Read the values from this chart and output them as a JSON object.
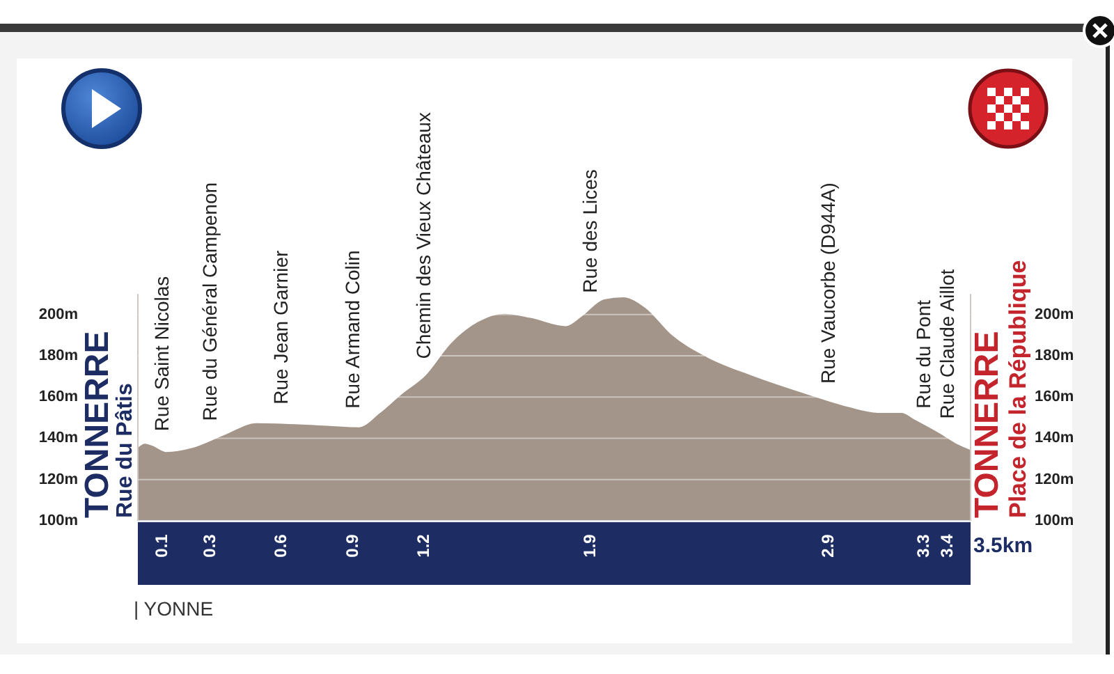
{
  "chart_data": {
    "type": "area",
    "color": "#a39589",
    "x": [
      0,
      0.03,
      0.06,
      0.12,
      0.23,
      0.36,
      0.5,
      0.75,
      0.93,
      1.02,
      1.11,
      1.21,
      1.32,
      1.43,
      1.54,
      1.65,
      1.8,
      1.87,
      1.96,
      2.04,
      2.13,
      2.24,
      2.39,
      2.58,
      2.81,
      2.98,
      3.11,
      3.21,
      3.26,
      3.37,
      3.44,
      3.5
    ],
    "values": [
      135,
      137,
      136,
      133,
      135,
      141,
      147,
      146,
      145,
      152,
      161,
      170,
      186,
      196,
      200,
      198,
      194,
      199,
      207,
      208,
      203,
      190,
      179,
      170,
      161,
      155,
      152,
      152,
      149,
      142,
      137,
      134
    ],
    "xlim": [
      0,
      3.5
    ],
    "xticks": [
      0.1,
      0.3,
      0.6,
      0.9,
      1.2,
      1.9,
      2.9,
      3.3,
      3.4
    ],
    "ylim": [
      100,
      210
    ],
    "yticks": [
      {
        "value": 100,
        "label": "100m"
      },
      {
        "value": 120,
        "label": "120m"
      },
      {
        "value": 140,
        "label": "140m"
      },
      {
        "value": 160,
        "label": "160m"
      },
      {
        "value": 180,
        "label": "180m"
      },
      {
        "value": 200,
        "label": "200m"
      }
    ],
    "y2lim": [
      100,
      210
    ],
    "y2ticks": [
      {
        "value": 100,
        "label": "100m"
      },
      {
        "value": 120,
        "label": "120m"
      },
      {
        "value": 140,
        "label": "140m"
      },
      {
        "value": 160,
        "label": "160m"
      },
      {
        "value": 180,
        "label": "180m"
      },
      {
        "value": 200,
        "label": "200m"
      }
    ],
    "grid": "y",
    "annotations": [
      "TONNERRE",
      "Rue du Pâtis",
      {
        "text": "Rue Saint Nicolas",
        "x": 0.1,
        "y": 134
      },
      {
        "text": "Rue du Général Campenon",
        "x": 0.3,
        "y": 139
      },
      {
        "text": "Rue Jean Garnier",
        "x": 0.6,
        "y": 147
      },
      {
        "text": "Rue Armand Colin",
        "x": 0.9,
        "y": 145
      },
      {
        "text": "Chemin des Vieux Châteaux",
        "x": 1.2,
        "y": 169
      },
      {
        "text": "Rue des Lices",
        "x": 1.9,
        "y": 201
      },
      {
        "text": "Rue Vaucorbe (D944A)",
        "x": 2.9,
        "y": 157
      },
      {
        "text": "Rue du Pont",
        "x": 3.3,
        "y": 145
      },
      {
        "text": "Rue Claude Aillot",
        "x": 3.4,
        "y": 140
      },
      "TONNERRE",
      "Place de la République",
      "3.5km",
      "| YONNE"
    ]
  }
}
